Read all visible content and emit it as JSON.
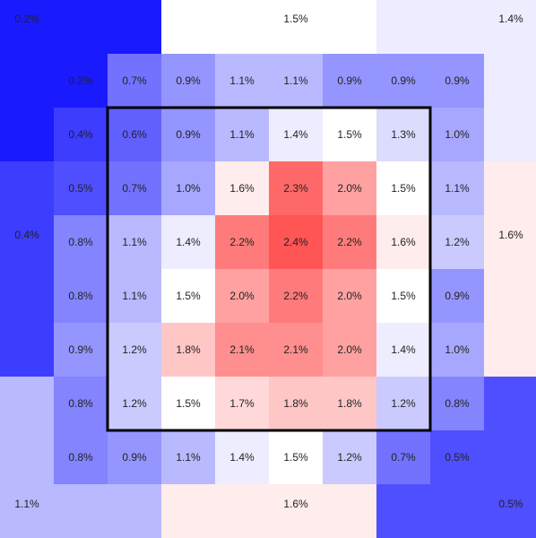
{
  "chart_data": {
    "type": "heatmap",
    "title": "",
    "xlabel": "",
    "ylabel": "",
    "value_format": "{v}%",
    "color_scale": {
      "low": "#1a1aff",
      "mid": "#ffffff",
      "high": "#ff5555",
      "domain": [
        0.2,
        1.5,
        2.4
      ]
    },
    "outer_zones": [
      {
        "name": "top-left",
        "value": 0.2
      },
      {
        "name": "top-center",
        "value": 1.5
      },
      {
        "name": "top-right",
        "value": 1.4
      },
      {
        "name": "middle-left",
        "value": 0.4
      },
      {
        "name": "middle-right",
        "value": 1.6
      },
      {
        "name": "bottom-left",
        "value": 1.1
      },
      {
        "name": "bottom-center",
        "value": 1.6
      },
      {
        "name": "bottom-right",
        "value": 0.5
      }
    ],
    "grid": [
      [
        0.2,
        0.7,
        0.9,
        1.1,
        1.1,
        0.9,
        0.9,
        0.9
      ],
      [
        0.4,
        0.6,
        0.9,
        1.1,
        1.4,
        1.5,
        1.3,
        1.0
      ],
      [
        0.5,
        0.7,
        1.0,
        1.6,
        2.3,
        2.0,
        1.5,
        1.1
      ],
      [
        0.8,
        1.1,
        1.4,
        2.2,
        2.4,
        2.2,
        1.6,
        1.2
      ],
      [
        0.8,
        1.1,
        1.5,
        2.0,
        2.2,
        2.0,
        1.5,
        0.9
      ],
      [
        0.9,
        1.2,
        1.8,
        2.1,
        2.1,
        2.0,
        1.4,
        1.0
      ],
      [
        0.8,
        1.2,
        1.5,
        1.7,
        1.8,
        1.8,
        1.2,
        0.8
      ],
      [
        0.8,
        0.9,
        1.1,
        1.4,
        1.5,
        1.2,
        0.7,
        0.5
      ]
    ],
    "highlight_box": {
      "row_start": 1,
      "row_end": 6,
      "col_start": 1,
      "col_end": 6
    }
  }
}
